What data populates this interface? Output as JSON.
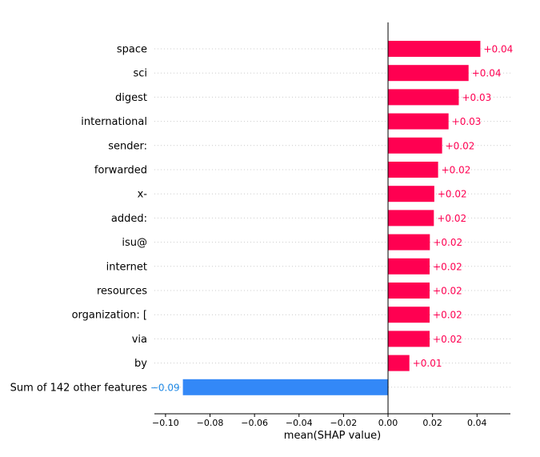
{
  "chart_data": {
    "type": "bar",
    "orientation": "horizontal",
    "title": "",
    "xlabel": "mean(SHAP value)",
    "ylabel": "",
    "xlim": [
      -0.105,
      0.055
    ],
    "xticks": [
      -0.1,
      -0.08,
      -0.06,
      -0.04,
      -0.02,
      0.0,
      0.02,
      0.04
    ],
    "xtick_labels": [
      "−0.10",
      "−0.08",
      "−0.06",
      "−0.04",
      "−0.02",
      "0.00",
      "0.02",
      "0.04"
    ],
    "grid": "horizontal dotted row guides",
    "colors": {
      "positive": "#ff0051",
      "negative": "#3388f7",
      "positive_text": "#ff0051",
      "negative_text": "#1e88e5"
    },
    "categories": [
      "space",
      "sci",
      "digest",
      "international",
      "sender:",
      "forwarded",
      "x-",
      "added:",
      "isu@",
      "internet",
      "resources",
      "organization: [",
      "via",
      "by",
      "Sum of 142 other features"
    ],
    "values": [
      0.0415,
      0.0362,
      0.0318,
      0.0272,
      0.0243,
      0.0225,
      0.0208,
      0.0206,
      0.0188,
      0.0187,
      0.0187,
      0.0187,
      0.0187,
      0.0096,
      -0.0922
    ],
    "value_labels": [
      "+0.04",
      "+0.04",
      "+0.03",
      "+0.03",
      "+0.02",
      "+0.02",
      "+0.02",
      "+0.02",
      "+0.02",
      "+0.02",
      "+0.02",
      "+0.02",
      "+0.02",
      "+0.01",
      "−0.09"
    ]
  }
}
